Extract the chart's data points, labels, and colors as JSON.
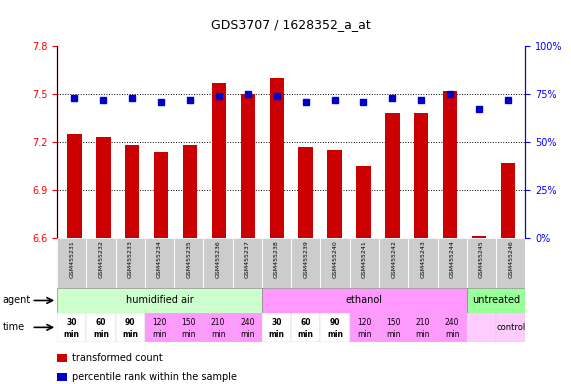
{
  "title": "GDS3707 / 1628352_a_at",
  "samples": [
    "GSM455231",
    "GSM455232",
    "GSM455233",
    "GSM455234",
    "GSM455235",
    "GSM455236",
    "GSM455237",
    "GSM455238",
    "GSM455239",
    "GSM455240",
    "GSM455241",
    "GSM455242",
    "GSM455243",
    "GSM455244",
    "GSM455245",
    "GSM455246"
  ],
  "bar_values": [
    7.25,
    7.23,
    7.18,
    7.14,
    7.18,
    7.57,
    7.5,
    7.6,
    7.17,
    7.15,
    7.05,
    7.38,
    7.38,
    7.52,
    6.61,
    7.07
  ],
  "dot_values": [
    73,
    72,
    73,
    71,
    72,
    74,
    75,
    74,
    71,
    72,
    71,
    73,
    72,
    75,
    67,
    72
  ],
  "ylim_left": [
    6.6,
    7.8
  ],
  "ylim_right": [
    0,
    100
  ],
  "yticks_left": [
    6.6,
    6.9,
    7.2,
    7.5,
    7.8
  ],
  "yticks_right": [
    0,
    25,
    50,
    75,
    100
  ],
  "ytick_labels_left": [
    "6.6",
    "6.9",
    "7.2",
    "7.5",
    "7.8"
  ],
  "ytick_labels_right": [
    "0%",
    "25%",
    "50%",
    "75%",
    "100%"
  ],
  "hlines": [
    7.5,
    7.2,
    6.9
  ],
  "bar_color": "#cc0000",
  "dot_color": "#0000cc",
  "agent_groups": [
    {
      "label": "humidified air",
      "start": 0,
      "end": 7,
      "color": "#ccffcc"
    },
    {
      "label": "ethanol",
      "start": 7,
      "end": 14,
      "color": "#ff99ff"
    },
    {
      "label": "untreated",
      "start": 14,
      "end": 16,
      "color": "#99ff99"
    }
  ],
  "time_labels": [
    "30\nmin",
    "60\nmin",
    "90\nmin",
    "120\nmin",
    "150\nmin",
    "210\nmin",
    "240\nmin",
    "30\nmin",
    "60\nmin",
    "90\nmin",
    "120\nmin",
    "150\nmin",
    "210\nmin",
    "240\nmin",
    "",
    "control"
  ],
  "time_colors": [
    "#ffffff",
    "#ffffff",
    "#ffffff",
    "#ff99ff",
    "#ff99ff",
    "#ff99ff",
    "#ff99ff",
    "#ffffff",
    "#ffffff",
    "#ffffff",
    "#ff99ff",
    "#ff99ff",
    "#ff99ff",
    "#ff99ff",
    "#ffccff",
    "#ffccff"
  ],
  "time_row_color": "#ffccff",
  "legend_items": [
    {
      "color": "#cc0000",
      "label": "transformed count"
    },
    {
      "color": "#0000cc",
      "label": "percentile rank within the sample"
    }
  ],
  "background_color": "#ffffff"
}
